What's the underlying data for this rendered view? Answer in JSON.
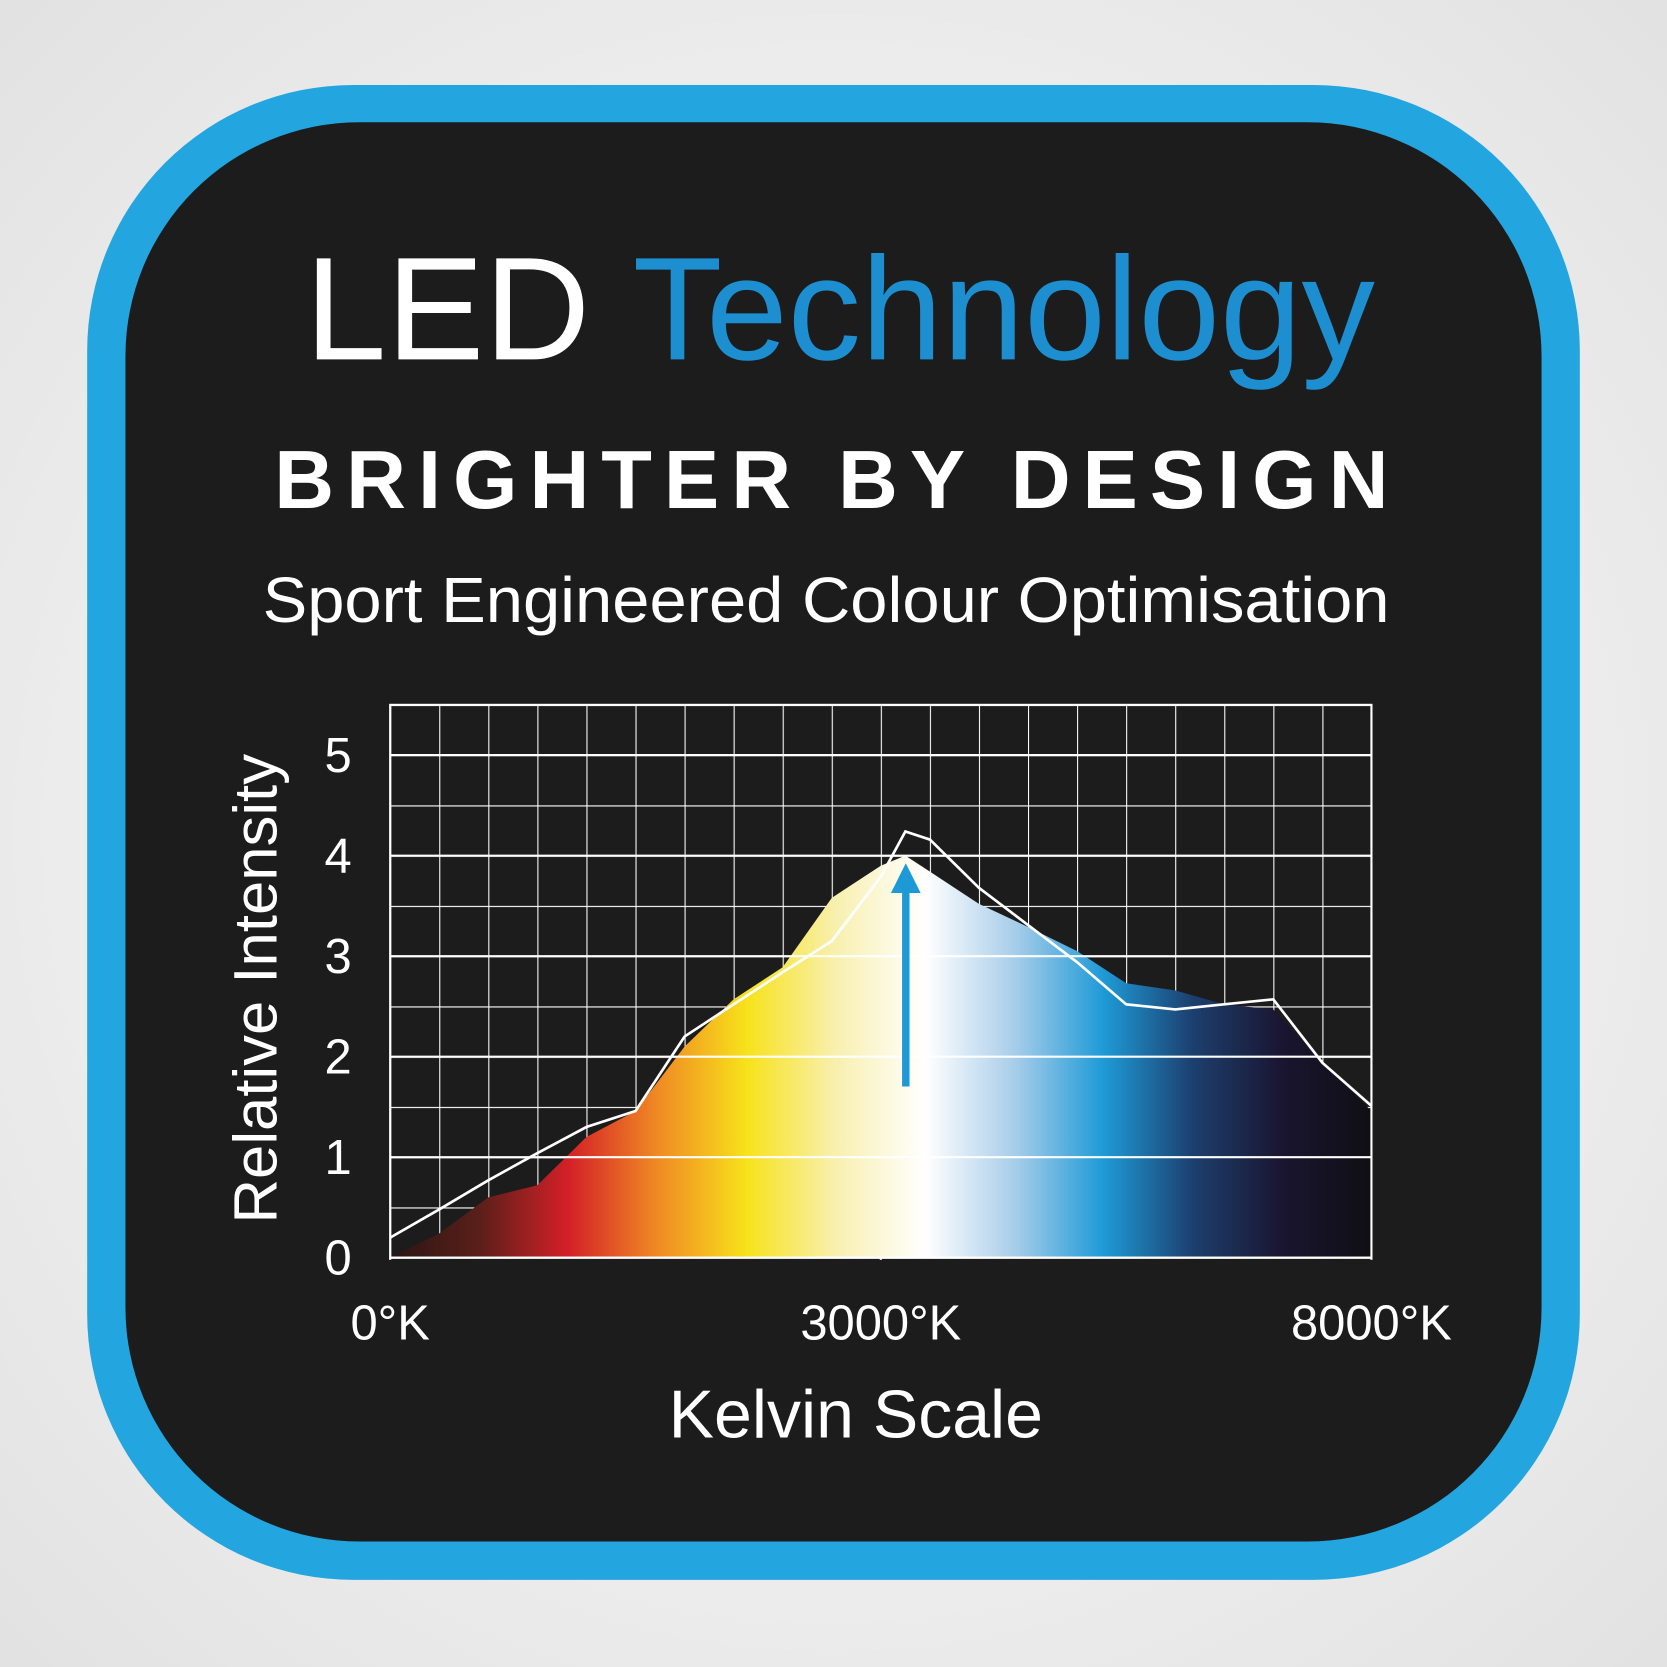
{
  "header": {
    "title_part1": "LED",
    "title_part2": "Technology",
    "tagline": "BRIGHTER BY DESIGN",
    "subtitle": "Sport Engineered Colour Optimisation"
  },
  "chart_data": {
    "type": "area",
    "ylabel": "Relative Intensity",
    "xlabel": "Kelvin Scale",
    "x": [
      0,
      1,
      2,
      3,
      4,
      5,
      6,
      7,
      8,
      9,
      10,
      10.5,
      11,
      12,
      13,
      14,
      15,
      16,
      17,
      18,
      19,
      20
    ],
    "series": [
      {
        "fill_gradient": [
          "#2a1512",
          "#5a1f1a",
          "#d42027",
          "#f08a24",
          "#f7e21b",
          "#f8f0b0",
          "#ffffff",
          "#a8cdea",
          "#1e9ad6",
          "#1c3f6e",
          "#1a1530",
          "#0f0f14"
        ],
        "values": [
          0,
          0.24,
          0.6,
          0.72,
          1.2,
          1.46,
          2.1,
          2.57,
          2.89,
          3.58,
          3.9,
          4.0,
          3.84,
          3.52,
          3.29,
          3.05,
          2.73,
          2.66,
          2.52,
          2.47,
          1.94,
          1.46
        ]
      },
      {
        "color": "#ffffff",
        "values": [
          0.2,
          0.48,
          0.77,
          1.04,
          1.3,
          1.46,
          2.2,
          2.52,
          2.84,
          3.15,
          3.79,
          4.24,
          4.16,
          3.68,
          3.31,
          2.94,
          2.52,
          2.47,
          2.52,
          2.57,
          1.94,
          1.51
        ]
      }
    ],
    "xlim": [
      0,
      20
    ],
    "xticks": [
      {
        "value": 0,
        "label": "0°K"
      },
      {
        "value": 10,
        "label": "3000°K"
      },
      {
        "value": 20,
        "label": "8000°K"
      }
    ],
    "ylim": [
      0,
      5.5
    ],
    "yticks": [
      0,
      1,
      2,
      3,
      4,
      5
    ],
    "grid": true
  }
}
